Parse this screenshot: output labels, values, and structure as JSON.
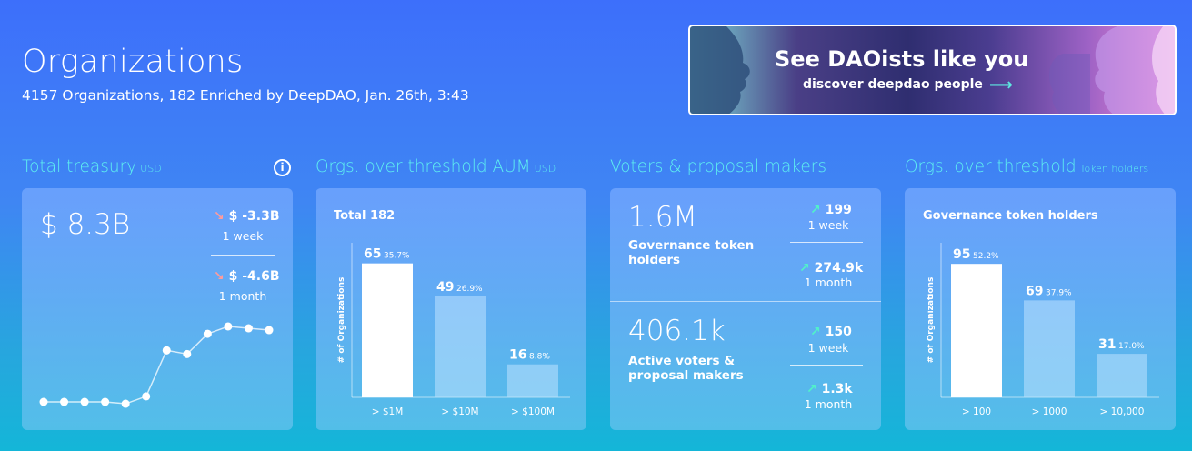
{
  "page": {
    "title": "Organizations",
    "subtitle": "4157 Organizations, 182 Enriched by DeepDAO, Jan. 26th, 3:43"
  },
  "banner": {
    "title": "See DAOists like you",
    "subtitle": "discover deepdao people",
    "arrow": "⟶"
  },
  "treasury": {
    "title": "Total treasury",
    "unit": "USD",
    "info_icon": "i",
    "value": "$ 8.3B",
    "deltas": [
      {
        "arrow": "↘",
        "value": "$ -3.3B",
        "period": "1 week"
      },
      {
        "arrow": "↘",
        "value": "$ -4.6B",
        "period": "1 month"
      }
    ],
    "sparkline": [
      0.0,
      0.0,
      0.0,
      0.0,
      -0.02,
      0.06,
      0.56,
      0.52,
      0.74,
      0.82,
      0.8,
      0.78
    ]
  },
  "aum": {
    "title": "Orgs. over threshold AUM",
    "unit": "USD",
    "label": "Total 182",
    "ylabel": "# of Organizations",
    "chart_data": {
      "type": "bar",
      "categories": [
        "> $1M",
        "> $10M",
        "> $100M"
      ],
      "values": [
        65,
        49,
        16
      ],
      "percents": [
        "35.7%",
        "26.9%",
        "8.8%"
      ],
      "ylabel": "# of Organizations",
      "ylim": [
        0,
        75
      ]
    }
  },
  "voters": {
    "title": "Voters & proposal makers",
    "blocks": [
      {
        "value": "1.6M",
        "label_line1": "Governance token",
        "label_line2": "holders",
        "deltas": [
          {
            "arrow": "↗",
            "value": "199",
            "period": "1 week"
          },
          {
            "arrow": "↗",
            "value": "274.9k",
            "period": "1 month"
          }
        ]
      },
      {
        "value": "406.1k",
        "label_line1": "Active voters &",
        "label_line2": "proposal makers",
        "deltas": [
          {
            "arrow": "↗",
            "value": "150",
            "period": "1 week"
          },
          {
            "arrow": "↗",
            "value": "1.3k",
            "period": "1 month"
          }
        ]
      }
    ]
  },
  "holders": {
    "title": "Orgs. over threshold",
    "unit": "Token holders",
    "label": "Governance token holders",
    "ylabel": "# of Organizations",
    "chart_data": {
      "type": "bar",
      "categories": [
        "> 100",
        "> 1000",
        "> 10,000"
      ],
      "values": [
        95,
        69,
        31
      ],
      "percents": [
        "52.2%",
        "37.9%",
        "17.0%"
      ],
      "ylabel": "# of Organizations",
      "ylim": [
        0,
        110
      ]
    }
  },
  "colors": {
    "accent_title": "#5ef1f0",
    "delta_down": "#ff9b9b",
    "delta_up": "#51f2c9"
  }
}
